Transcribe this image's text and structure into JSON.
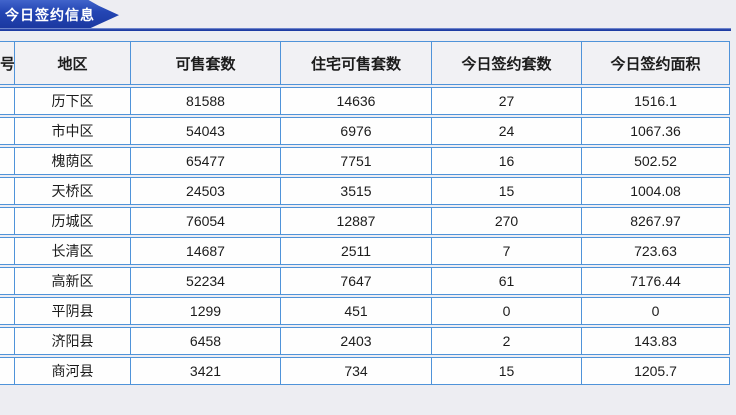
{
  "header_tab": {
    "label": "今日签约信息"
  },
  "table": {
    "columns": [
      {
        "key": "index",
        "label": "号"
      },
      {
        "key": "district",
        "label": "地区"
      },
      {
        "key": "available",
        "label": "可售套数"
      },
      {
        "key": "residential_available",
        "label": "住宅可售套数"
      },
      {
        "key": "signed_today",
        "label": "今日签约套数"
      },
      {
        "key": "area_today",
        "label": "今日签约面积"
      }
    ],
    "rows": [
      {
        "index": "",
        "district": "历下区",
        "available": "81588",
        "residential_available": "14636",
        "signed_today": "27",
        "area_today": "1516.1"
      },
      {
        "index": "",
        "district": "市中区",
        "available": "54043",
        "residential_available": "6976",
        "signed_today": "24",
        "area_today": "1067.36"
      },
      {
        "index": "",
        "district": "槐荫区",
        "available": "65477",
        "residential_available": "7751",
        "signed_today": "16",
        "area_today": "502.52"
      },
      {
        "index": "",
        "district": "天桥区",
        "available": "24503",
        "residential_available": "3515",
        "signed_today": "15",
        "area_today": "1004.08"
      },
      {
        "index": "",
        "district": "历城区",
        "available": "76054",
        "residential_available": "12887",
        "signed_today": "270",
        "area_today": "8267.97"
      },
      {
        "index": "",
        "district": "长清区",
        "available": "14687",
        "residential_available": "2511",
        "signed_today": "7",
        "area_today": "723.63"
      },
      {
        "index": "",
        "district": "高新区",
        "available": "52234",
        "residential_available": "7647",
        "signed_today": "61",
        "area_today": "7176.44"
      },
      {
        "index": "",
        "district": "平阴县",
        "available": "1299",
        "residential_available": "451",
        "signed_today": "0",
        "area_today": "0"
      },
      {
        "index": "",
        "district": "济阳县",
        "available": "6458",
        "residential_available": "2403",
        "signed_today": "2",
        "area_today": "143.83"
      },
      {
        "index": "",
        "district": "商河县",
        "available": "3421",
        "residential_available": "734",
        "signed_today": "15",
        "area_today": "1205.7"
      }
    ]
  },
  "colors": {
    "tab_blue": "#2143ae",
    "underline_navy": "#1e3ba3",
    "table_border_blue": "#4f93d9",
    "header_bg": "#f1f1f4",
    "row_bg": "#fefefe",
    "page_bg": "#ededf2"
  }
}
